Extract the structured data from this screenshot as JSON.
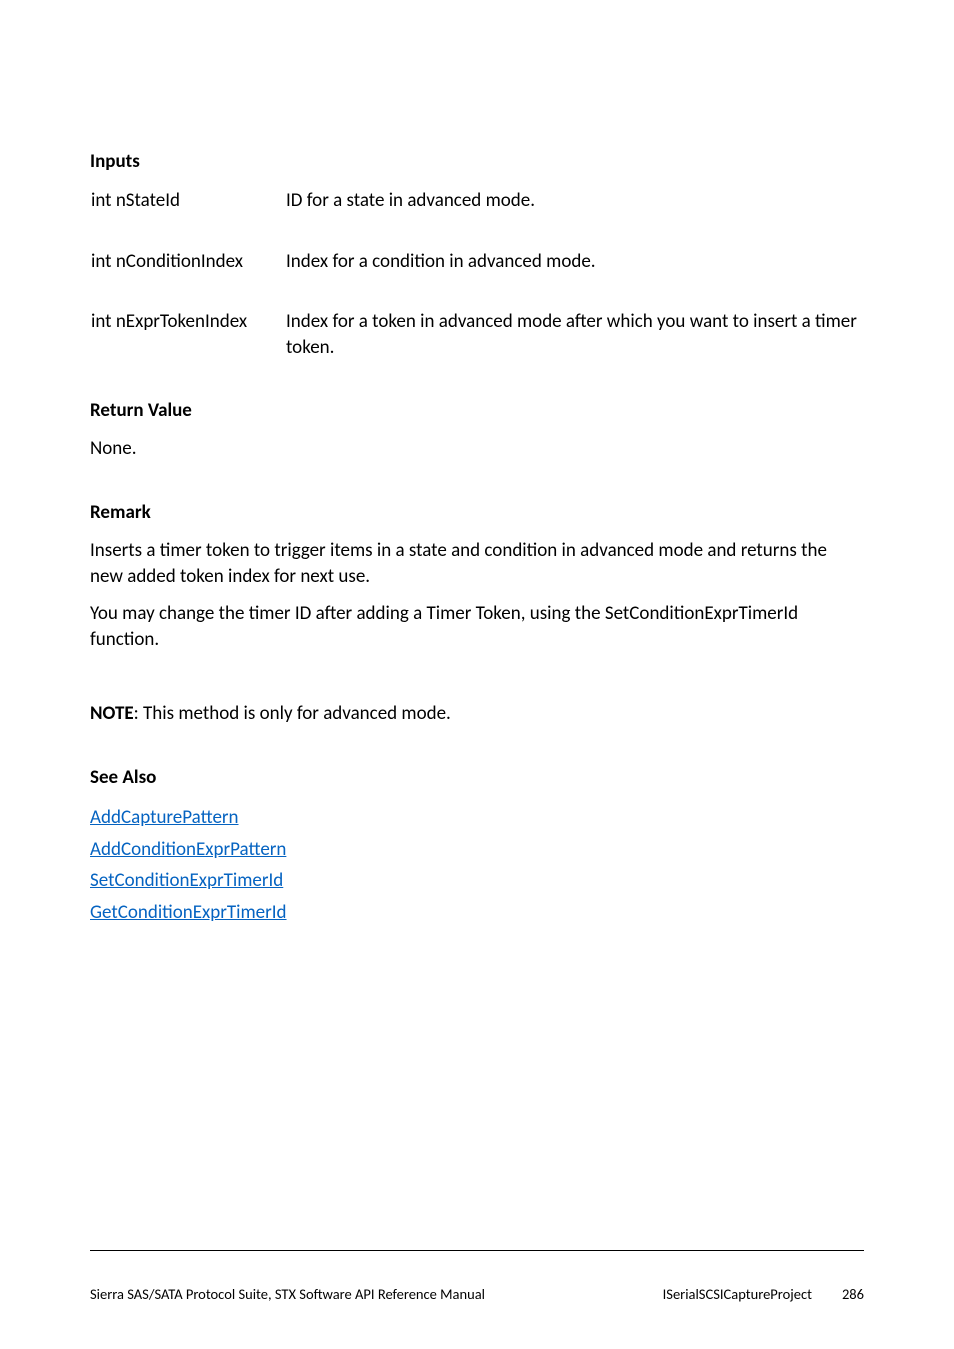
{
  "inputs": {
    "heading": "Inputs",
    "rows": [
      {
        "param": "int nStateId",
        "desc": "ID for a state in advanced mode."
      },
      {
        "param": "int nConditionIndex",
        "desc": "Index for a condition in advanced mode."
      },
      {
        "param": "int nExprTokenIndex",
        "desc": "Index for a token in advanced mode after which you want to insert a timer token."
      }
    ]
  },
  "returnValue": {
    "heading": "Return Value",
    "body": "None."
  },
  "remark": {
    "heading": "Remark",
    "p1": "Inserts a timer token to trigger items in a state and condition in advanced mode and returns the new added token index for next use.",
    "p2": "You may change the timer ID after adding a Timer Token, using the SetConditionExprTimerId function."
  },
  "note": {
    "label": "NOTE",
    "text": ": This method is only for advanced mode."
  },
  "seeAlso": {
    "heading": "See Also",
    "links": [
      "AddCapturePattern",
      "AddConditionExprPattern",
      "SetConditionExprTimerId",
      "GetConditionExprTimerId"
    ]
  },
  "footer": {
    "left": "Sierra SAS/SATA Protocol Suite, STX Software API Reference Manual",
    "rightLabel": "ISerialSCSICaptureProject",
    "pageNumber": "286"
  }
}
